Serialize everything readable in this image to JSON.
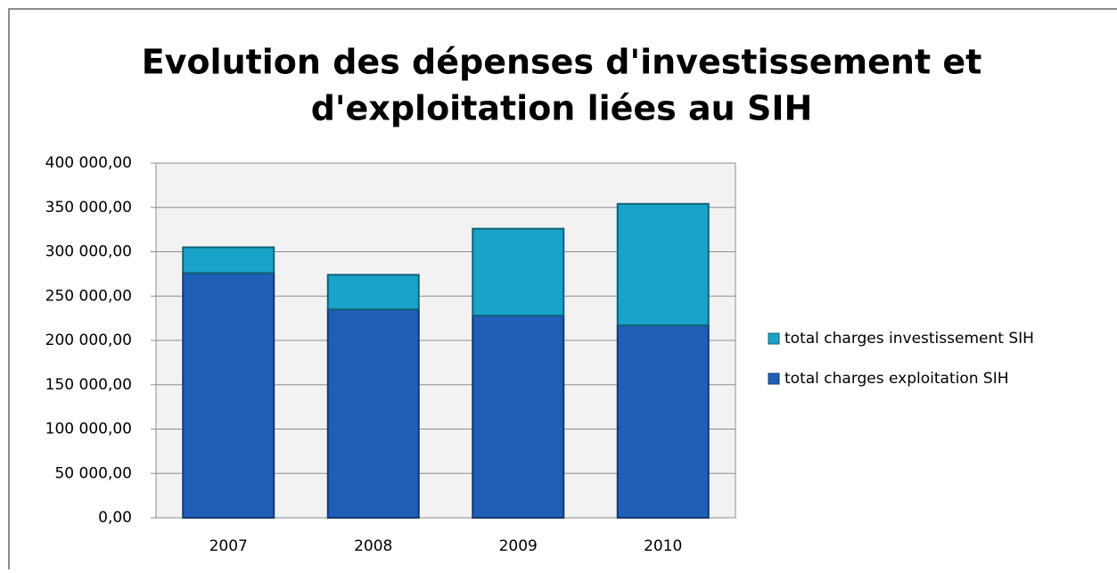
{
  "chart_data": {
    "type": "stacked_bar",
    "title": [
      "Evolution des dépenses d'investissement et",
      "d'exploitation liées au SIH"
    ],
    "categories": [
      "2007",
      "2008",
      "2009",
      "2010"
    ],
    "series": [
      {
        "name": "total charges exploitation SIH",
        "color": "#1f5fb8",
        "values": [
          276000,
          235000,
          228000,
          217000
        ]
      },
      {
        "name": "total charges investissement SIH",
        "color": "#1aa3c8",
        "values": [
          29000,
          39000,
          98000,
          137000
        ]
      }
    ],
    "ylim": [
      0,
      400000
    ],
    "yticks": [
      {
        "value": 0,
        "label": "0,00"
      },
      {
        "value": 50000,
        "label": "50 000,00"
      },
      {
        "value": 100000,
        "label": "100 000,00"
      },
      {
        "value": 150000,
        "label": "150 000,00"
      },
      {
        "value": 200000,
        "label": "200 000,00"
      },
      {
        "value": 250000,
        "label": "250 000,00"
      },
      {
        "value": 300000,
        "label": "300 000,00"
      },
      {
        "value": 350000,
        "label": "350 000,00"
      },
      {
        "value": 400000,
        "label": "400 000,00"
      }
    ],
    "grid": true,
    "legend": "right"
  }
}
